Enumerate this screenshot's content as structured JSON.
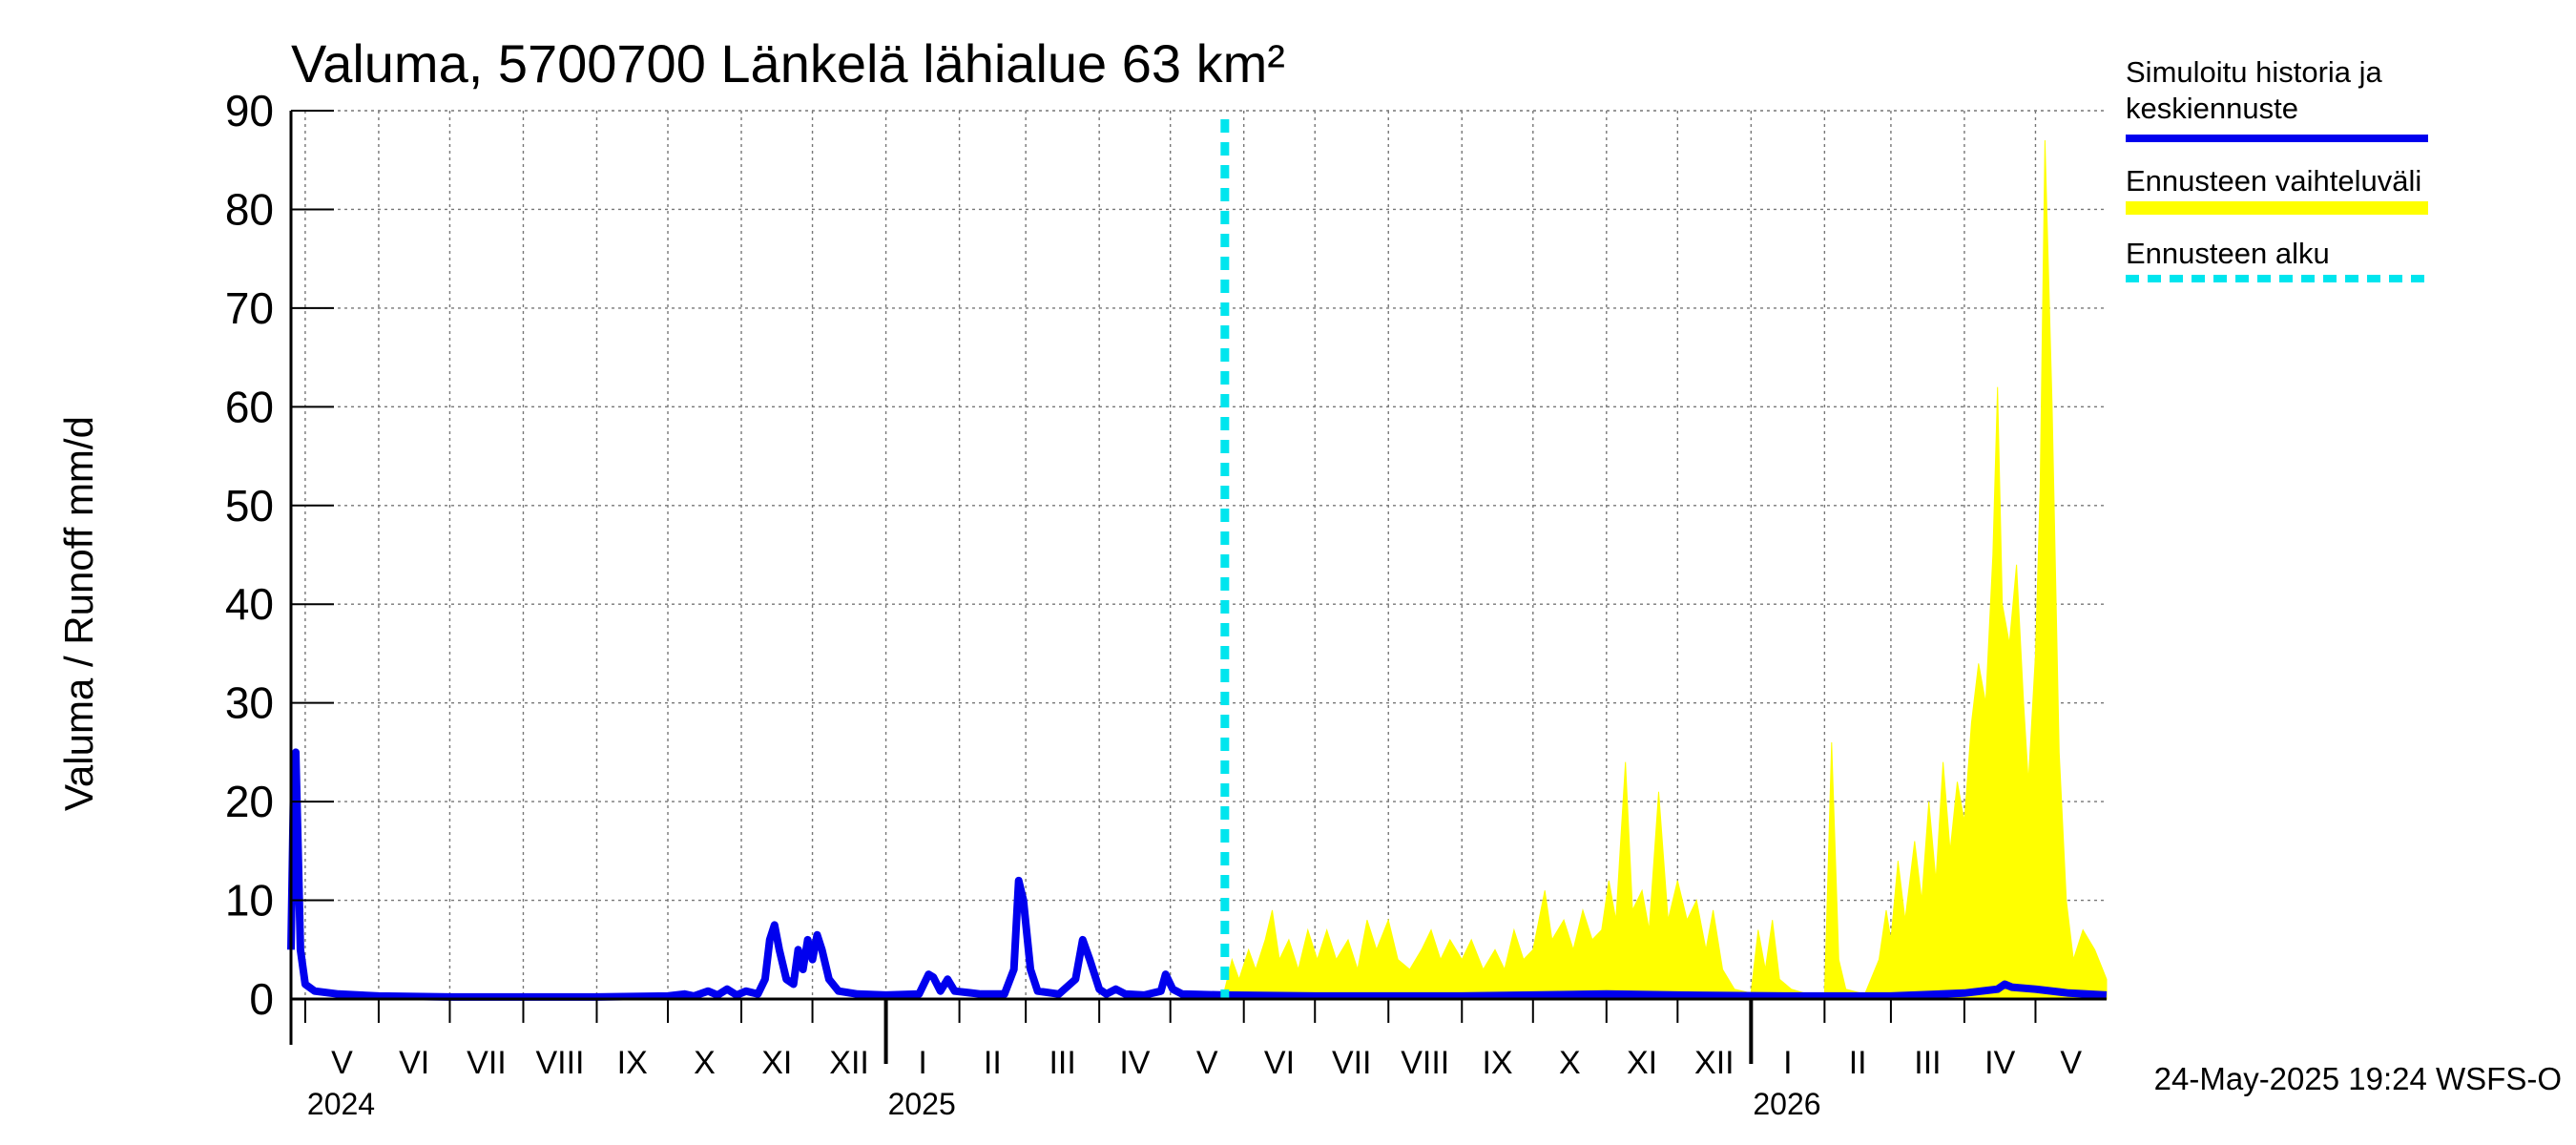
{
  "chart_data": {
    "type": "area",
    "title": "Valuma, 5700700 Länkelä lähialue 63 km²",
    "ylabel": "Valuma / Runoff     mm/d",
    "ylim": [
      0,
      90
    ],
    "yticks": [
      0,
      10,
      20,
      30,
      40,
      50,
      60,
      70,
      80,
      90
    ],
    "grid": true,
    "legend_position": "right",
    "x_range": [
      "2024-04-25",
      "2026-05-31"
    ],
    "months": [
      {
        "label": "V",
        "date": "2024-05-01"
      },
      {
        "label": "VI",
        "date": "2024-06-01"
      },
      {
        "label": "VII",
        "date": "2024-07-01"
      },
      {
        "label": "VIII",
        "date": "2024-08-01"
      },
      {
        "label": "IX",
        "date": "2024-09-01"
      },
      {
        "label": "X",
        "date": "2024-10-01"
      },
      {
        "label": "XI",
        "date": "2024-11-01"
      },
      {
        "label": "XII",
        "date": "2024-12-01"
      },
      {
        "label": "I",
        "date": "2025-01-01"
      },
      {
        "label": "II",
        "date": "2025-02-01"
      },
      {
        "label": "III",
        "date": "2025-03-01"
      },
      {
        "label": "IV",
        "date": "2025-04-01"
      },
      {
        "label": "V",
        "date": "2025-05-01"
      },
      {
        "label": "VI",
        "date": "2025-06-01"
      },
      {
        "label": "VII",
        "date": "2025-07-01"
      },
      {
        "label": "VIII",
        "date": "2025-08-01"
      },
      {
        "label": "IX",
        "date": "2025-09-01"
      },
      {
        "label": "X",
        "date": "2025-10-01"
      },
      {
        "label": "XI",
        "date": "2025-11-01"
      },
      {
        "label": "XII",
        "date": "2025-12-01"
      },
      {
        "label": "I",
        "date": "2026-01-01"
      },
      {
        "label": "II",
        "date": "2026-02-01"
      },
      {
        "label": "III",
        "date": "2026-03-01"
      },
      {
        "label": "IV",
        "date": "2026-04-01"
      },
      {
        "label": "V",
        "date": "2026-05-01"
      }
    ],
    "years": [
      {
        "label": "2024",
        "date": "2024-05-01"
      },
      {
        "label": "2025",
        "date": "2025-01-01"
      },
      {
        "label": "2026",
        "date": "2026-01-01"
      }
    ],
    "forecast_start": "2025-05-24",
    "series": [
      {
        "name": "Simuloitu historia ja keskiennuste",
        "color": "#0000ee",
        "style": "line",
        "points": [
          [
            "2024-04-25",
            5
          ],
          [
            "2024-04-26",
            20
          ],
          [
            "2024-04-27",
            25
          ],
          [
            "2024-04-28",
            15
          ],
          [
            "2024-04-29",
            5
          ],
          [
            "2024-05-01",
            1.5
          ],
          [
            "2024-05-05",
            0.8
          ],
          [
            "2024-05-15",
            0.5
          ],
          [
            "2024-06-01",
            0.3
          ],
          [
            "2024-07-01",
            0.2
          ],
          [
            "2024-08-01",
            0.2
          ],
          [
            "2024-09-01",
            0.2
          ],
          [
            "2024-10-01",
            0.3
          ],
          [
            "2024-10-08",
            0.5
          ],
          [
            "2024-10-12",
            0.3
          ],
          [
            "2024-10-18",
            0.8
          ],
          [
            "2024-10-22",
            0.4
          ],
          [
            "2024-10-26",
            1.0
          ],
          [
            "2024-10-30",
            0.4
          ],
          [
            "2024-11-03",
            0.8
          ],
          [
            "2024-11-08",
            0.5
          ],
          [
            "2024-11-11",
            2
          ],
          [
            "2024-11-13",
            6
          ],
          [
            "2024-11-15",
            7.5
          ],
          [
            "2024-11-17",
            5
          ],
          [
            "2024-11-20",
            2
          ],
          [
            "2024-11-23",
            1.5
          ],
          [
            "2024-11-25",
            5
          ],
          [
            "2024-11-27",
            3
          ],
          [
            "2024-11-29",
            6
          ],
          [
            "2024-12-01",
            4
          ],
          [
            "2024-12-03",
            6.5
          ],
          [
            "2024-12-05",
            5
          ],
          [
            "2024-12-08",
            2
          ],
          [
            "2024-12-12",
            0.8
          ],
          [
            "2024-12-20",
            0.5
          ],
          [
            "2025-01-01",
            0.4
          ],
          [
            "2025-01-15",
            0.5
          ],
          [
            "2025-01-19",
            2.5
          ],
          [
            "2025-01-21",
            2.2
          ],
          [
            "2025-01-24",
            0.8
          ],
          [
            "2025-01-27",
            2
          ],
          [
            "2025-01-30",
            0.8
          ],
          [
            "2025-02-10",
            0.5
          ],
          [
            "2025-02-20",
            0.5
          ],
          [
            "2025-02-24",
            3
          ],
          [
            "2025-02-26",
            12
          ],
          [
            "2025-02-28",
            10
          ],
          [
            "2025-03-03",
            3
          ],
          [
            "2025-03-06",
            0.8
          ],
          [
            "2025-03-15",
            0.5
          ],
          [
            "2025-03-22",
            2
          ],
          [
            "2025-03-25",
            6
          ],
          [
            "2025-03-28",
            4
          ],
          [
            "2025-04-01",
            1
          ],
          [
            "2025-04-04",
            0.5
          ],
          [
            "2025-04-08",
            1
          ],
          [
            "2025-04-12",
            0.5
          ],
          [
            "2025-04-20",
            0.4
          ],
          [
            "2025-04-27",
            0.8
          ],
          [
            "2025-04-29",
            2.5
          ],
          [
            "2025-05-02",
            1
          ],
          [
            "2025-05-06",
            0.5
          ],
          [
            "2025-05-24",
            0.4
          ],
          [
            "2025-07-01",
            0.3
          ],
          [
            "2025-09-01",
            0.3
          ],
          [
            "2025-10-01",
            0.4
          ],
          [
            "2025-11-01",
            0.5
          ],
          [
            "2025-12-01",
            0.4
          ],
          [
            "2026-01-15",
            0.3
          ],
          [
            "2026-03-01",
            0.3
          ],
          [
            "2026-04-01",
            0.6
          ],
          [
            "2026-04-15",
            1.0
          ],
          [
            "2026-04-18",
            1.5
          ],
          [
            "2026-04-21",
            1.2
          ],
          [
            "2026-05-01",
            1.0
          ],
          [
            "2026-05-15",
            0.6
          ],
          [
            "2026-05-31",
            0.4
          ]
        ]
      },
      {
        "name": "Ennusteen vaihteluväli",
        "color": "#ffff00",
        "style": "band",
        "points": [
          [
            "2025-05-24",
            1
          ],
          [
            "2025-05-27",
            4
          ],
          [
            "2025-05-30",
            2
          ],
          [
            "2025-06-03",
            5
          ],
          [
            "2025-06-06",
            3
          ],
          [
            "2025-06-10",
            6
          ],
          [
            "2025-06-13",
            9
          ],
          [
            "2025-06-16",
            4
          ],
          [
            "2025-06-20",
            6
          ],
          [
            "2025-06-24",
            3
          ],
          [
            "2025-06-28",
            7
          ],
          [
            "2025-07-02",
            4
          ],
          [
            "2025-07-06",
            7
          ],
          [
            "2025-07-10",
            4
          ],
          [
            "2025-07-15",
            6
          ],
          [
            "2025-07-19",
            3
          ],
          [
            "2025-07-23",
            8
          ],
          [
            "2025-07-27",
            5
          ],
          [
            "2025-08-01",
            8
          ],
          [
            "2025-08-05",
            4
          ],
          [
            "2025-08-10",
            3
          ],
          [
            "2025-08-15",
            5
          ],
          [
            "2025-08-19",
            7
          ],
          [
            "2025-08-23",
            4
          ],
          [
            "2025-08-27",
            6
          ],
          [
            "2025-09-01",
            4
          ],
          [
            "2025-09-05",
            6
          ],
          [
            "2025-09-10",
            3
          ],
          [
            "2025-09-15",
            5
          ],
          [
            "2025-09-19",
            3
          ],
          [
            "2025-09-23",
            7
          ],
          [
            "2025-09-27",
            4
          ],
          [
            "2025-10-01",
            5
          ],
          [
            "2025-10-06",
            11
          ],
          [
            "2025-10-09",
            6
          ],
          [
            "2025-10-14",
            8
          ],
          [
            "2025-10-18",
            5
          ],
          [
            "2025-10-22",
            9
          ],
          [
            "2025-10-26",
            6
          ],
          [
            "2025-10-30",
            7
          ],
          [
            "2025-11-02",
            12
          ],
          [
            "2025-11-05",
            8
          ],
          [
            "2025-11-09",
            24
          ],
          [
            "2025-11-12",
            9
          ],
          [
            "2025-11-16",
            11
          ],
          [
            "2025-11-19",
            7
          ],
          [
            "2025-11-23",
            21
          ],
          [
            "2025-11-27",
            8
          ],
          [
            "2025-12-01",
            12
          ],
          [
            "2025-12-05",
            8
          ],
          [
            "2025-12-09",
            10
          ],
          [
            "2025-12-13",
            5
          ],
          [
            "2025-12-16",
            9
          ],
          [
            "2025-12-20",
            3
          ],
          [
            "2025-12-25",
            1
          ],
          [
            "2026-01-01",
            0.6
          ],
          [
            "2026-01-04",
            7
          ],
          [
            "2026-01-07",
            3
          ],
          [
            "2026-01-10",
            8
          ],
          [
            "2026-01-13",
            2
          ],
          [
            "2026-01-18",
            1
          ],
          [
            "2026-01-25",
            0.5
          ],
          [
            "2026-02-01",
            0.5
          ],
          [
            "2026-02-04",
            26
          ],
          [
            "2026-02-07",
            4
          ],
          [
            "2026-02-10",
            1
          ],
          [
            "2026-02-18",
            0.5
          ],
          [
            "2026-02-24",
            4
          ],
          [
            "2026-02-27",
            9
          ],
          [
            "2026-03-01",
            6
          ],
          [
            "2026-03-04",
            14
          ],
          [
            "2026-03-07",
            8
          ],
          [
            "2026-03-11",
            16
          ],
          [
            "2026-03-14",
            10
          ],
          [
            "2026-03-17",
            20
          ],
          [
            "2026-03-20",
            12
          ],
          [
            "2026-03-23",
            24
          ],
          [
            "2026-03-26",
            15
          ],
          [
            "2026-03-29",
            22
          ],
          [
            "2026-04-01",
            18
          ],
          [
            "2026-04-04",
            28
          ],
          [
            "2026-04-07",
            34
          ],
          [
            "2026-04-10",
            30
          ],
          [
            "2026-04-13",
            45
          ],
          [
            "2026-04-15",
            62
          ],
          [
            "2026-04-17",
            40
          ],
          [
            "2026-04-20",
            36
          ],
          [
            "2026-04-23",
            44
          ],
          [
            "2026-04-26",
            30
          ],
          [
            "2026-04-28",
            22
          ],
          [
            "2026-05-01",
            35
          ],
          [
            "2026-05-03",
            52
          ],
          [
            "2026-05-05",
            87
          ],
          [
            "2026-05-08",
            60
          ],
          [
            "2026-05-11",
            25
          ],
          [
            "2026-05-14",
            10
          ],
          [
            "2026-05-17",
            4
          ],
          [
            "2026-05-21",
            7
          ],
          [
            "2026-05-26",
            5
          ],
          [
            "2026-05-31",
            2
          ]
        ]
      }
    ],
    "legend": [
      {
        "label": "Simuloitu historia ja keskiennuste",
        "color": "#0000ee",
        "style": "solid"
      },
      {
        "label": "Ennusteen vaihteluväli",
        "color": "#ffff00",
        "style": "solid"
      },
      {
        "label": "Ennusteen alku",
        "color": "#00e5ee",
        "style": "dashed"
      }
    ],
    "footer": "24-May-2025 19:24 WSFS-O"
  }
}
